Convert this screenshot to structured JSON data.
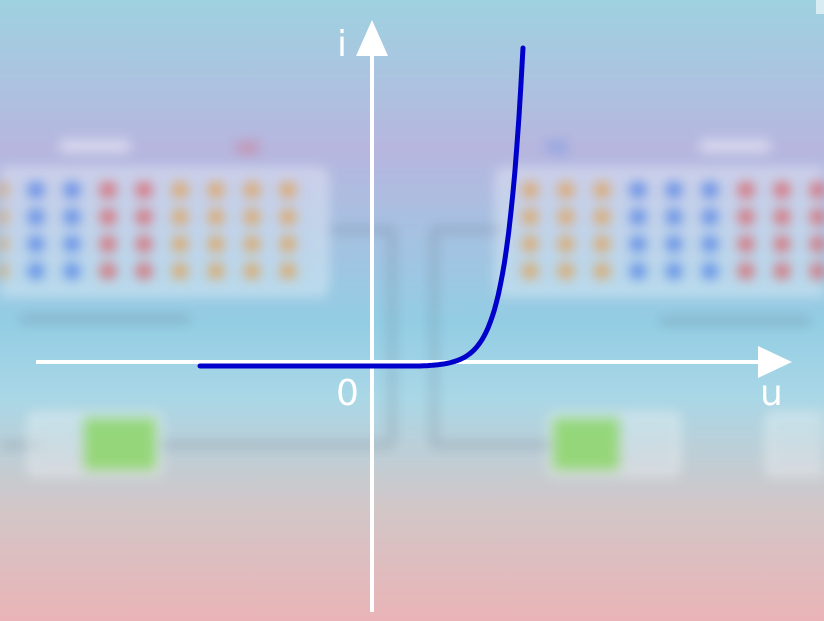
{
  "diagram": {
    "axes": {
      "y_label": "i",
      "x_label": "u",
      "origin_label": "0"
    },
    "curve_color": "#0000cc",
    "axis_color": "#ffffff"
  },
  "background": {
    "left_panel_label": "N区",
    "right_panel_label": "P区",
    "panel_accent_left": "#e0484d",
    "panel_accent_right": "#3a7be0",
    "dot_colors": {
      "blue": "#4a7de6",
      "red": "#e05a5a",
      "orange": "#e8a04c"
    },
    "battery_fill": "#8fd86a"
  }
}
